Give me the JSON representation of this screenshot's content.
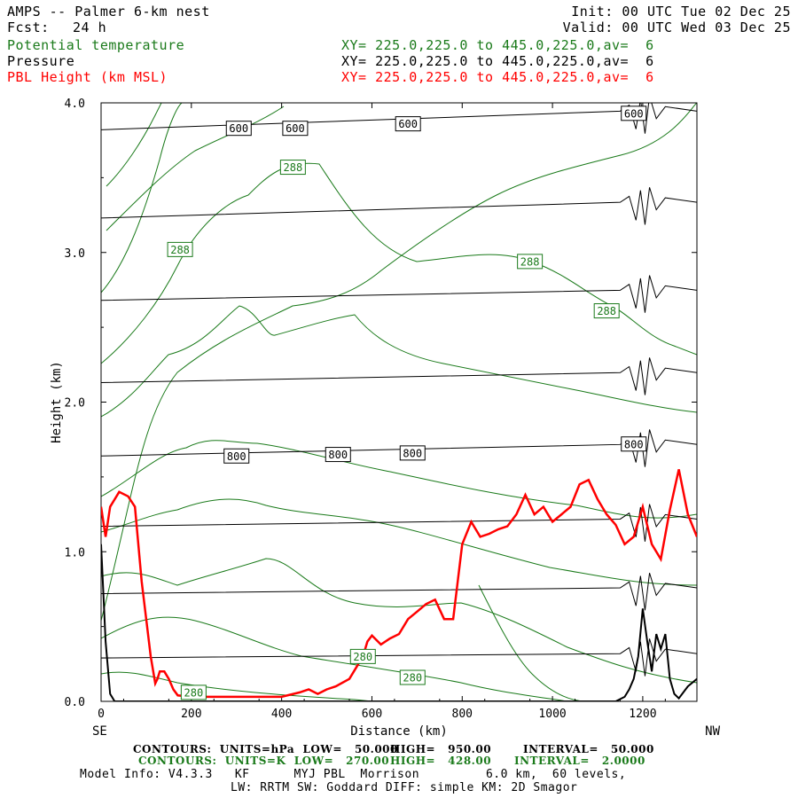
{
  "header": {
    "title": "AMPS -- Palmer 6-km nest",
    "fcst_label": "Fcst:",
    "fcst_value": "24 h",
    "init": "Init: 00 UTC Tue 02 Dec 25",
    "valid": "Valid: 00 UTC Wed 03 Dec 25"
  },
  "fields": [
    {
      "name": "Potential temperature",
      "xy": "XY= 225.0,225.0 to 445.0,225.0,av=  6",
      "color": "#1a7a1a"
    },
    {
      "name": "Pressure",
      "xy": "XY= 225.0,225.0 to 445.0,225.0,av=  6",
      "color": "#000000"
    },
    {
      "name": "PBL Height (km MSL)",
      "xy": "XY= 225.0,225.0 to 445.0,225.0,av=  6",
      "color": "#ff0000"
    }
  ],
  "footer": {
    "contours_k_left": "CONTOURS:  UNITS=hPa  LOW=   50.000",
    "contours_k_mid": "HIGH=   950.00",
    "contours_k_right": "INTERVAL=   50.000",
    "contours_g_left": "CONTOURS:  UNITS=K  LOW=   270.00",
    "contours_g_mid": "HIGH=   428.00",
    "contours_g_right": "INTERVAL=   2.0000",
    "model_info": "Model Info: V4.3.3   KF      MYJ PBL  Morrison         6.0 km,  60 levels,",
    "model_info2": "LW: RRTM SW: Goddard DIFF: simple KM: 2D Smagor"
  },
  "chart_data": {
    "type": "line",
    "xlabel": "Distance (km)",
    "ylabel": "Height (km)",
    "x_left_label": "SE",
    "x_right_label": "NW",
    "xlim": [
      0,
      1320
    ],
    "ylim": [
      0,
      4
    ],
    "x_ticks": [
      0,
      200,
      400,
      600,
      800,
      1000,
      1200
    ],
    "y_ticks": [
      "0.0",
      "1.0",
      "2.0",
      "3.0",
      "4.0"
    ],
    "pressure_contour_labels": [
      {
        "text": "600",
        "x": 305,
        "y": 3.83
      },
      {
        "text": "600",
        "x": 430,
        "y": 3.83
      },
      {
        "text": "600",
        "x": 680,
        "y": 3.86
      },
      {
        "text": "600",
        "x": 1180,
        "y": 3.93
      },
      {
        "text": "800",
        "x": 300,
        "y": 1.64
      },
      {
        "text": "800",
        "x": 525,
        "y": 1.65
      },
      {
        "text": "800",
        "x": 690,
        "y": 1.66
      },
      {
        "text": "800",
        "x": 1180,
        "y": 1.72
      }
    ],
    "theta_contour_labels": [
      {
        "text": "288",
        "x": 425,
        "y": 3.57
      },
      {
        "text": "288",
        "x": 175,
        "y": 3.02
      },
      {
        "text": "288",
        "x": 950,
        "y": 2.94
      },
      {
        "text": "288",
        "x": 1120,
        "y": 2.61
      },
      {
        "text": "280",
        "x": 580,
        "y": 0.3
      },
      {
        "text": "280",
        "x": 690,
        "y": 0.16
      },
      {
        "text": "280",
        "x": 205,
        "y": 0.06
      }
    ],
    "pressure_levels_height": [
      {
        "level": "600",
        "x": [
          0,
          1200
        ],
        "y": [
          3.82,
          3.95
        ]
      },
      {
        "level": "650",
        "x": [
          0,
          1200
        ],
        "y": [
          3.23,
          3.34
        ]
      },
      {
        "level": "700",
        "x": [
          0,
          1200
        ],
        "y": [
          2.68,
          2.75
        ]
      },
      {
        "level": "750",
        "x": [
          0,
          1200
        ],
        "y": [
          2.13,
          2.2
        ]
      },
      {
        "level": "800",
        "x": [
          0,
          1200
        ],
        "y": [
          1.64,
          1.72
        ]
      },
      {
        "level": "850",
        "x": [
          0,
          1200
        ],
        "y": [
          1.17,
          1.22
        ]
      },
      {
        "level": "900",
        "x": [
          0,
          1200
        ],
        "y": [
          0.72,
          0.76
        ]
      },
      {
        "level": "950",
        "x": [
          0,
          1200
        ],
        "y": [
          0.29,
          0.32
        ]
      }
    ],
    "series": [
      {
        "name": "PBL Height (km MSL)",
        "color": "#ff0000",
        "x": [
          0,
          10,
          20,
          40,
          60,
          75,
          90,
          110,
          120,
          125,
          130,
          140,
          150,
          160,
          170,
          200,
          300,
          400,
          440,
          460,
          480,
          500,
          520,
          550,
          570,
          580,
          590,
          600,
          620,
          640,
          660,
          680,
          700,
          720,
          740,
          760,
          780,
          790,
          800,
          820,
          840,
          860,
          880,
          900,
          920,
          940,
          960,
          980,
          1000,
          1020,
          1040,
          1060,
          1080,
          1100,
          1120,
          1140,
          1160,
          1180,
          1200,
          1220,
          1240,
          1260,
          1280,
          1300,
          1320
        ],
        "y": [
          1.3,
          1.1,
          1.3,
          1.4,
          1.37,
          1.3,
          0.8,
          0.3,
          0.12,
          0.15,
          0.2,
          0.2,
          0.15,
          0.08,
          0.04,
          0.03,
          0.03,
          0.03,
          0.06,
          0.08,
          0.05,
          0.08,
          0.1,
          0.15,
          0.25,
          0.3,
          0.4,
          0.44,
          0.38,
          0.42,
          0.45,
          0.55,
          0.6,
          0.65,
          0.68,
          0.55,
          0.55,
          0.8,
          1.05,
          1.2,
          1.1,
          1.12,
          1.15,
          1.17,
          1.25,
          1.38,
          1.25,
          1.3,
          1.2,
          1.25,
          1.3,
          1.45,
          1.48,
          1.35,
          1.25,
          1.18,
          1.05,
          1.1,
          1.3,
          1.05,
          0.95,
          1.28,
          1.55,
          1.25,
          1.1
        ]
      },
      {
        "name": "Terrain",
        "color": "#000000",
        "x": [
          0,
          10,
          20,
          30,
          1140,
          1160,
          1170,
          1180,
          1190,
          1200,
          1210,
          1220,
          1230,
          1240,
          1250,
          1260,
          1270,
          1280,
          1300,
          1320
        ],
        "y": [
          1.05,
          0.4,
          0.05,
          0.0,
          0.0,
          0.03,
          0.08,
          0.15,
          0.3,
          0.62,
          0.4,
          0.2,
          0.45,
          0.35,
          0.45,
          0.15,
          0.05,
          0.02,
          0.1,
          0.15
        ]
      }
    ]
  }
}
